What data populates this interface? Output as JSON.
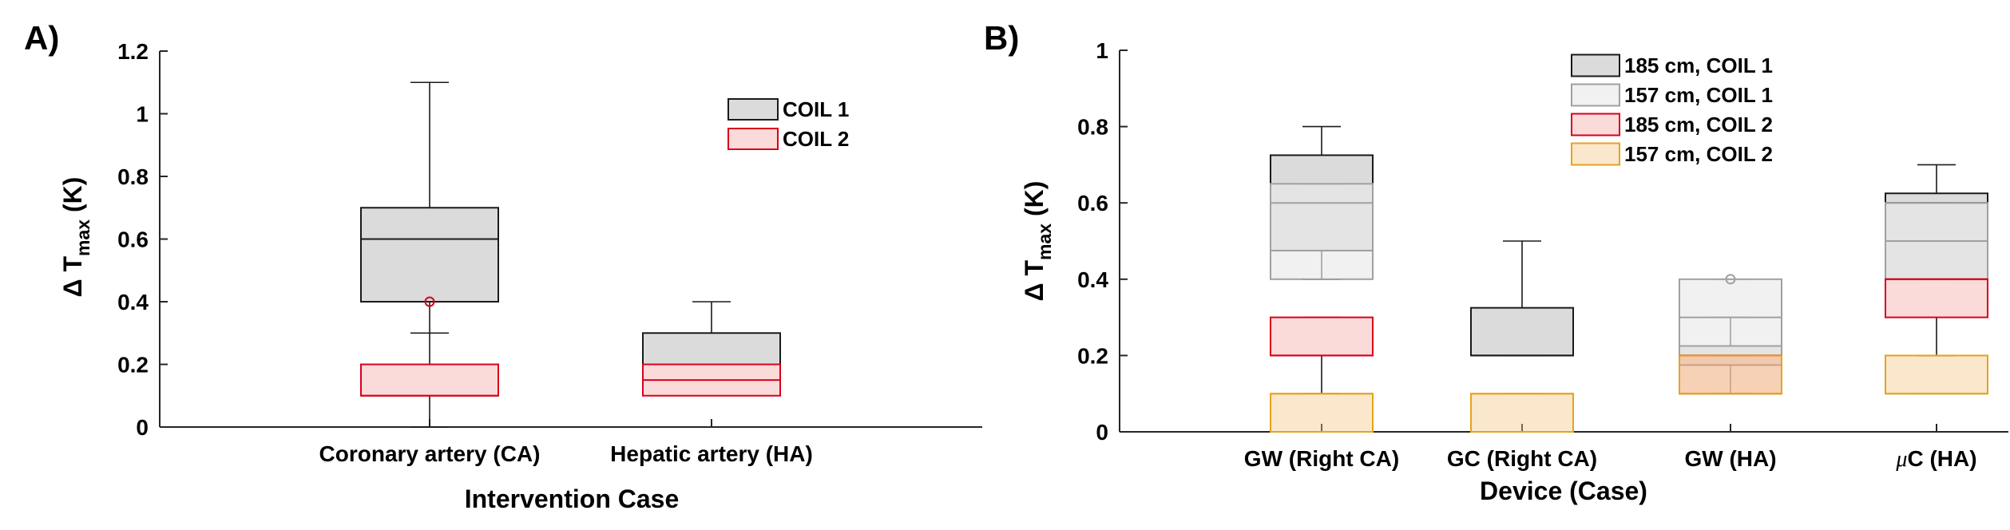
{
  "chart_data": [
    {
      "panel_label": "A)",
      "type": "box",
      "xlabel": "Intervention Case",
      "ylabel": "Δ T",
      "ylabel_subscript": "max",
      "ylabel_unit": "(K)",
      "ylim": [
        0,
        1.2
      ],
      "yticks": [
        "0",
        "0.2",
        "0.4",
        "0.6",
        "0.8",
        "1",
        "1.2"
      ],
      "categories": [
        "Coronary artery (CA)",
        "Hepatic artery (HA)"
      ],
      "legend_position": "top-right",
      "series": [
        {
          "name": "COIL 1",
          "fill": "#c8c8c8",
          "edge": "#1a1a1a",
          "boxes": [
            {
              "category": "Coronary artery (CA)",
              "whisker_low": 0.3,
              "q1": 0.4,
              "median": 0.6,
              "q3": 0.7,
              "whisker_high": 1.1
            },
            {
              "category": "Hepatic artery (HA)",
              "whisker_low": 0.2,
              "q1": 0.2,
              "median": 0.2,
              "q3": 0.3,
              "whisker_high": 0.4
            }
          ]
        },
        {
          "name": "COIL 2",
          "fill": "#f9c6c6",
          "edge": "#d9001b",
          "boxes": [
            {
              "category": "Coronary artery (CA)",
              "whisker_low": 0.0,
              "q1": 0.1,
              "median": 0.1,
              "q3": 0.2,
              "whisker_high": 0.3,
              "outliers": [
                0.4
              ]
            },
            {
              "category": "Hepatic artery (HA)",
              "whisker_low": 0.1,
              "q1": 0.1,
              "median": 0.15,
              "q3": 0.2,
              "whisker_high": 0.2
            }
          ]
        }
      ]
    },
    {
      "panel_label": "B)",
      "type": "box",
      "xlabel": "Device (Case)",
      "ylabel": "Δ T",
      "ylabel_subscript": "max",
      "ylabel_unit": "(K)",
      "ylim": [
        0,
        1
      ],
      "yticks": [
        "0",
        "0.2",
        "0.4",
        "0.6",
        "0.8",
        "1"
      ],
      "categories": [
        "GW (Right CA)",
        "GC (Right CA)",
        "GW (HA)",
        "μC (HA)"
      ],
      "legend_position": "top-right",
      "series": [
        {
          "name": "185 cm, COIL 1",
          "fill": "#c8c8c8",
          "edge": "#1a1a1a",
          "boxes": [
            {
              "category": "GW (Right CA)",
              "whisker_low": 0.4,
              "q1": 0.475,
              "median": 0.6,
              "q3": 0.725,
              "whisker_high": 0.8
            },
            {
              "category": "GC (Right CA)",
              "whisker_low": 0.2,
              "q1": 0.2,
              "median": 0.2,
              "q3": 0.325,
              "whisker_high": 0.5
            },
            {
              "category": "GW (HA)",
              "whisker_low": 0.1,
              "q1": 0.175,
              "median": 0.2,
              "q3": 0.225,
              "whisker_high": 0.3
            },
            {
              "category": "μC (HA)",
              "whisker_low": 0.4,
              "q1": 0.4,
              "median": 0.6,
              "q3": 0.625,
              "whisker_high": 0.7
            }
          ]
        },
        {
          "name": "157 cm, COIL 1",
          "fill": "#eaeaea",
          "edge": "#a0a0a0",
          "boxes": [
            {
              "category": "GW (Right CA)",
              "whisker_low": 0.4,
              "q1": 0.4,
              "median": 0.475,
              "q3": 0.65,
              "whisker_high": 0.65
            },
            {
              "category": "GW (HA)",
              "whisker_low": 0.2,
              "q1": 0.2,
              "median": 0.3,
              "q3": 0.4,
              "whisker_high": 0.4,
              "outliers": [
                0.4
              ]
            },
            {
              "category": "μC (HA)",
              "whisker_low": 0.4,
              "q1": 0.4,
              "median": 0.5,
              "q3": 0.6,
              "whisker_high": 0.6
            }
          ]
        },
        {
          "name": "185 cm, COIL 2",
          "fill": "#f9c6c6",
          "edge": "#d9001b",
          "boxes": [
            {
              "category": "GW (Right CA)",
              "whisker_low": 0.1,
              "q1": 0.2,
              "median": 0.2,
              "q3": 0.3,
              "whisker_high": 0.3
            },
            {
              "category": "GW (HA)",
              "whisker_low": 0.1,
              "q1": 0.1,
              "median": 0.2,
              "q3": 0.2,
              "whisker_high": 0.2
            },
            {
              "category": "μC (HA)",
              "whisker_low": 0.2,
              "q1": 0.3,
              "median": 0.4,
              "q3": 0.4,
              "whisker_high": 0.4
            }
          ]
        },
        {
          "name": "157 cm, COIL 2",
          "fill": "#f2c47f",
          "edge": "#e6a31e",
          "opacity": 0.4,
          "boxes": [
            {
              "category": "GW (Right CA)",
              "whisker_low": 0.0,
              "q1": 0.0,
              "median": 0.1,
              "q3": 0.1,
              "whisker_high": 0.1
            },
            {
              "category": "GC (Right CA)",
              "whisker_low": 0.0,
              "q1": 0.0,
              "median": 0.1,
              "q3": 0.1,
              "whisker_high": 0.1
            },
            {
              "category": "GW (HA)",
              "whisker_low": 0.1,
              "q1": 0.1,
              "median": 0.1,
              "q3": 0.2,
              "whisker_high": 0.2
            },
            {
              "category": "μC (HA)",
              "whisker_low": 0.1,
              "q1": 0.1,
              "median": 0.1,
              "q3": 0.2,
              "whisker_high": 0.2
            }
          ]
        }
      ]
    }
  ]
}
